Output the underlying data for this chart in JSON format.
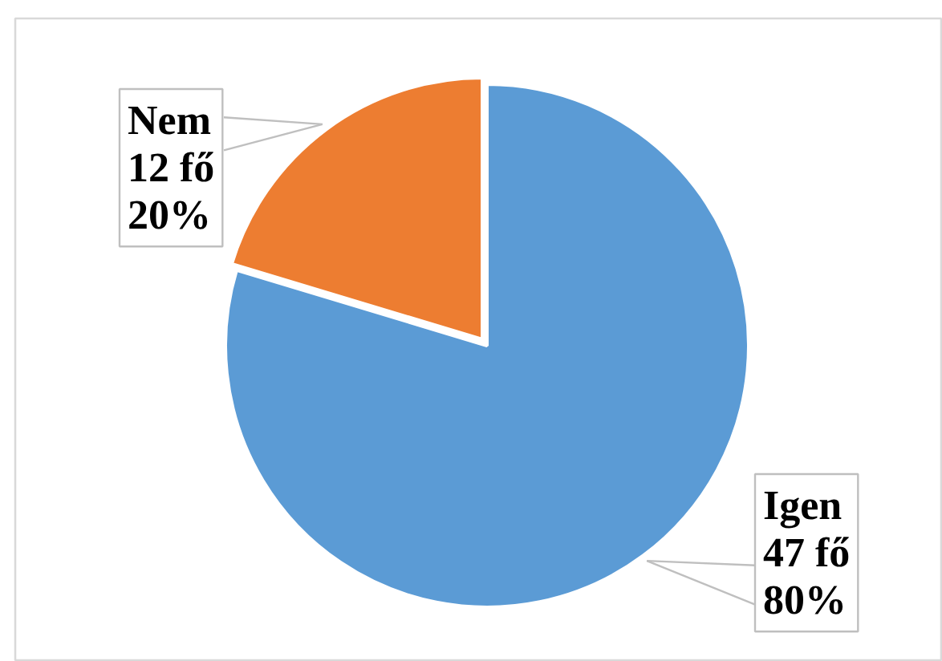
{
  "chart_data": {
    "type": "pie",
    "categories": [
      "Igen",
      "Nem"
    ],
    "values": [
      47,
      12
    ],
    "colors": [
      "#5b9bd5",
      "#ed7d31"
    ],
    "value_labels": [
      "47 fő\n80%",
      "12 fő\n20%"
    ]
  }
}
